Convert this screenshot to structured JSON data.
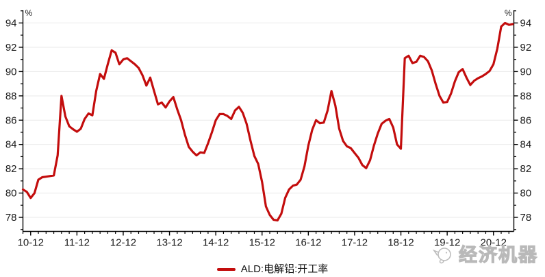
{
  "chart_data": {
    "type": "line",
    "title": "",
    "y_axis_unit_left": "%",
    "y_axis_unit_right": "%",
    "y_major_ticks": [
      78,
      80,
      82,
      84,
      86,
      88,
      90,
      92,
      94
    ],
    "y_minor_ticks": [
      77,
      79,
      81,
      83,
      85,
      87,
      89,
      91,
      93,
      95
    ],
    "ylim": [
      76.8,
      95.0
    ],
    "grid": "horizontal-major-light",
    "legend_position": "bottom-center",
    "x_major_ticks": [
      {
        "label": "10-12",
        "month_index": 2
      },
      {
        "label": "11-12",
        "month_index": 14
      },
      {
        "label": "12-12",
        "month_index": 26
      },
      {
        "label": "13-12",
        "month_index": 38
      },
      {
        "label": "14-12",
        "month_index": 50
      },
      {
        "label": "15-12",
        "month_index": 62
      },
      {
        "label": "16-12",
        "month_index": 74
      },
      {
        "label": "17-12",
        "month_index": 86
      },
      {
        "label": "18-12",
        "month_index": 98
      },
      {
        "label": "19-12",
        "month_index": 110
      },
      {
        "label": "20-12",
        "month_index": 122
      }
    ],
    "x_minor_tick_every_months": 2,
    "series": [
      {
        "name": "ALD:电解铝:开工率",
        "color": "#c30d0d",
        "frequency": "monthly",
        "values": [
          80.3,
          80.1,
          79.6,
          80.0,
          81.1,
          81.3,
          81.35,
          81.4,
          81.45,
          83.1,
          88.0,
          86.3,
          85.5,
          85.25,
          85.05,
          85.3,
          86.1,
          86.55,
          86.4,
          88.4,
          89.8,
          89.4,
          90.6,
          91.75,
          91.55,
          90.6,
          91.0,
          91.1,
          90.85,
          90.6,
          90.3,
          89.7,
          88.85,
          89.5,
          88.4,
          87.3,
          87.45,
          87.05,
          87.55,
          87.9,
          86.9,
          86.0,
          84.8,
          83.8,
          83.4,
          83.1,
          83.35,
          83.3,
          84.1,
          85.0,
          86.0,
          86.5,
          86.5,
          86.35,
          86.1,
          86.8,
          87.1,
          86.6,
          85.7,
          84.3,
          83.05,
          82.4,
          80.9,
          78.9,
          78.2,
          77.8,
          77.75,
          78.3,
          79.6,
          80.3,
          80.6,
          80.7,
          81.1,
          82.2,
          83.9,
          85.2,
          86.0,
          85.75,
          85.8,
          86.8,
          88.4,
          87.2,
          85.3,
          84.3,
          83.85,
          83.7,
          83.3,
          82.9,
          82.3,
          82.05,
          82.7,
          83.9,
          84.9,
          85.7,
          85.95,
          86.1,
          85.4,
          84.0,
          83.65,
          91.1,
          91.3,
          90.7,
          90.8,
          91.3,
          91.2,
          90.85,
          90.1,
          89.0,
          88.0,
          87.45,
          87.5,
          88.2,
          89.2,
          89.95,
          90.2,
          89.5,
          88.9,
          89.25,
          89.45,
          89.6,
          89.8,
          90.05,
          90.6,
          91.9,
          93.7,
          94.0,
          93.85,
          93.9
        ]
      }
    ]
  },
  "legend": {
    "label": "ALD:电解铝:开工率",
    "swatch_color": "#c30d0d"
  },
  "watermark": {
    "text": "经济机器"
  },
  "axis_colors": {
    "axis_line": "#000000",
    "grid_line": "#e9e9e9",
    "tick_label": "#1a1a1a"
  }
}
